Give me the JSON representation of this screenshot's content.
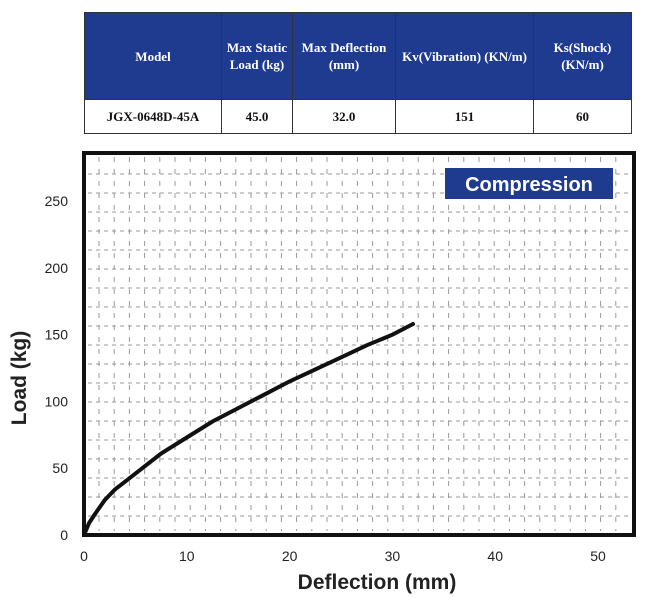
{
  "table": {
    "headers": [
      "Model",
      "Max Static Load (kg)",
      "Max Deflection (mm)",
      "Kv(Vibration) (KN/m)",
      "Ks(Shock) (KN/m)"
    ],
    "row": [
      "JGX-0648D-45A",
      "45.0",
      "32.0",
      "151",
      "60"
    ]
  },
  "chart_data": {
    "type": "line",
    "title": "Compression",
    "xlabel": "Deflection (mm)",
    "ylabel": "Load (kg)",
    "xlim": [
      0,
      53.5
    ],
    "ylim": [
      0,
      286
    ],
    "xticks": [
      0,
      10,
      20,
      30,
      40,
      50
    ],
    "yticks": [
      0,
      50,
      100,
      150,
      200,
      250
    ],
    "grid": true,
    "series": [
      {
        "name": "Compression",
        "x": [
          0,
          0.5,
          1,
          2,
          3,
          5,
          7.5,
          10,
          12.5,
          15,
          17.5,
          20,
          22.5,
          25,
          27.5,
          30,
          32
        ],
        "y": [
          0,
          9,
          15,
          26,
          34,
          46,
          61,
          73,
          85,
          95,
          105,
          115,
          124,
          133,
          142,
          150,
          158
        ]
      }
    ],
    "colors": {
      "header": "#1f3b8f",
      "line": "#111111"
    }
  }
}
